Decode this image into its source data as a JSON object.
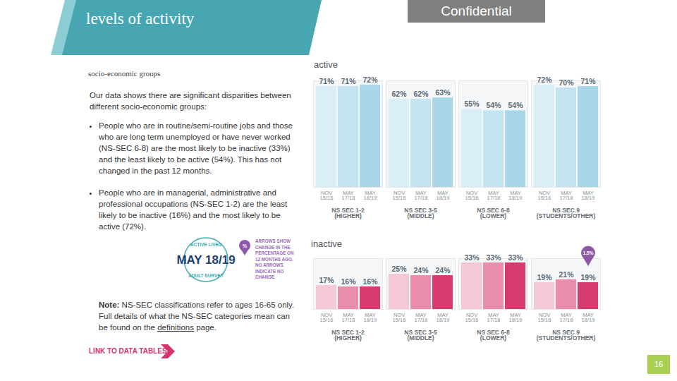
{
  "page": {
    "header": {
      "title": "levels of activity",
      "badge": "Confidential"
    },
    "subtitle": "socio-economic groups",
    "intro": "Our data shows there are significant disparities between different socio-economic groups:",
    "bullets": [
      "People who are in routine/semi-routine jobs and those who are long term unemployed or have never worked (NS-SEC 6-8) are the most likely to be inactive (33%) and the least likely to be active (54%). This has not changed in the past 12 months.",
      "People who are in managerial, administrative and professional occupations (NS-SEC 1-2) are the least likely to be inactive (16%) and the most likely to be active (72%)."
    ],
    "key": {
      "survey": [
        "ACTIVE LIVES",
        "ADULT SURVEY"
      ],
      "period": "MAY 18/19",
      "icon": "%",
      "text": [
        "ARROWS SHOW",
        "CHANGE IN THE",
        "PERCENTAGE ON",
        "12 MONTHS AGO.",
        "NO ARROWS",
        "INDICATE NO",
        "CHANGE"
      ]
    },
    "note": {
      "label": "Note:",
      "text": "NS-SEC classifications refer to ages 16-65 only. Full details of what the NS-SEC categories mean can be found on the",
      "link": "definitions",
      "end": "page."
    },
    "link": "LINK TO DATA TABLES",
    "page_number": "16"
  },
  "chart_data": [
    {
      "type": "bar",
      "title": "active",
      "categories": [
        "NS SEC 1-2 (HIGHER)",
        "NS SEC 3-5 (MIDDLE)",
        "NS SEC 6-8 (LOWER)",
        "NS SEC 9 (STUDENTS/OTHER)"
      ],
      "series": [
        {
          "name": "NOV 15/16",
          "color": "#d9eef6",
          "values": [
            71,
            62,
            55,
            72
          ],
          "value_labels": [
            "71%",
            "62%",
            "55%",
            "72%"
          ]
        },
        {
          "name": "MAY 17/18",
          "color": "#c3e3f0",
          "values": [
            71,
            62,
            54,
            70
          ],
          "value_labels": [
            "71%",
            "62%",
            "54%",
            "70%"
          ]
        },
        {
          "name": "MAY 18/19",
          "color": "#a9d7e9",
          "values": [
            72,
            63,
            54,
            71
          ],
          "value_labels": [
            "72%",
            "63%",
            "54%",
            "71%"
          ]
        }
      ],
      "ylim": [
        0,
        75
      ],
      "grid": false,
      "data_labels": true,
      "tick_labels": "x"
    },
    {
      "type": "bar",
      "title": "inactive",
      "categories": [
        "NS SEC 1-2 (HIGHER)",
        "NS SEC 3-5 (MIDDLE)",
        "NS SEC 6-8 (LOWER)",
        "NS SEC 9 (STUDENTS/OTHER)"
      ],
      "series": [
        {
          "name": "NOV 15/16",
          "color": "#f5c8d5",
          "values": [
            17,
            25,
            33,
            19
          ],
          "value_labels": [
            "17%",
            "25%",
            "33%",
            "19%"
          ]
        },
        {
          "name": "MAY 17/18",
          "color": "#e98dac",
          "values": [
            16,
            24,
            33,
            21
          ],
          "value_labels": [
            "16%",
            "24%",
            "33%",
            "21%"
          ]
        },
        {
          "name": "MAY 18/19",
          "color": "#d63c70",
          "values": [
            16,
            24,
            33,
            19
          ],
          "value_labels": [
            "16%",
            "24%",
            "33%",
            "19%"
          ]
        }
      ],
      "ylim": [
        0,
        36
      ],
      "grid": false,
      "data_labels": true,
      "tick_labels": "x",
      "annotations": [
        {
          "category": "NS SEC 9 (STUDENTS/OTHER)",
          "series": "MAY 18/19",
          "change": -1.5,
          "label": "1.5%",
          "color": "#8e5aa8"
        }
      ]
    }
  ]
}
